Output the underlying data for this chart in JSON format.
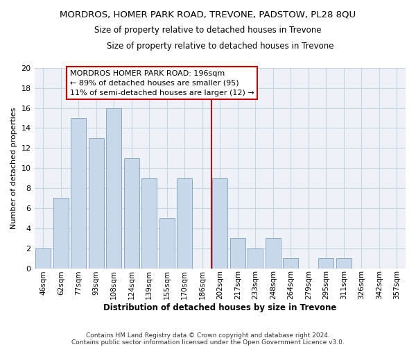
{
  "title": "MORDROS, HOMER PARK ROAD, TREVONE, PADSTOW, PL28 8QU",
  "subtitle": "Size of property relative to detached houses in Trevone",
  "xlabel": "Distribution of detached houses by size in Trevone",
  "ylabel": "Number of detached properties",
  "bar_labels": [
    "46sqm",
    "62sqm",
    "77sqm",
    "93sqm",
    "108sqm",
    "124sqm",
    "139sqm",
    "155sqm",
    "170sqm",
    "186sqm",
    "202sqm",
    "217sqm",
    "233sqm",
    "248sqm",
    "264sqm",
    "279sqm",
    "295sqm",
    "311sqm",
    "326sqm",
    "342sqm",
    "357sqm"
  ],
  "bar_values": [
    2,
    7,
    15,
    13,
    16,
    11,
    9,
    5,
    9,
    0,
    9,
    3,
    2,
    3,
    1,
    0,
    1,
    1,
    0,
    0,
    0
  ],
  "bar_color": "#c8d8ea",
  "bar_edge_color": "#8aaac0",
  "vline_color": "#cc0000",
  "annotation_text": "MORDROS HOMER PARK ROAD: 196sqm\n← 89% of detached houses are smaller (95)\n11% of semi-detached houses are larger (12) →",
  "annotation_box_color": "white",
  "annotation_box_edge": "#cc0000",
  "ylim": [
    0,
    20
  ],
  "yticks": [
    0,
    2,
    4,
    6,
    8,
    10,
    12,
    14,
    16,
    18,
    20
  ],
  "footer1": "Contains HM Land Registry data © Crown copyright and database right 2024.",
  "footer2": "Contains public sector information licensed under the Open Government Licence v3.0.",
  "grid_color": "#c8d4e0",
  "fig_background": "#ffffff",
  "plot_background": "#eef2f8"
}
